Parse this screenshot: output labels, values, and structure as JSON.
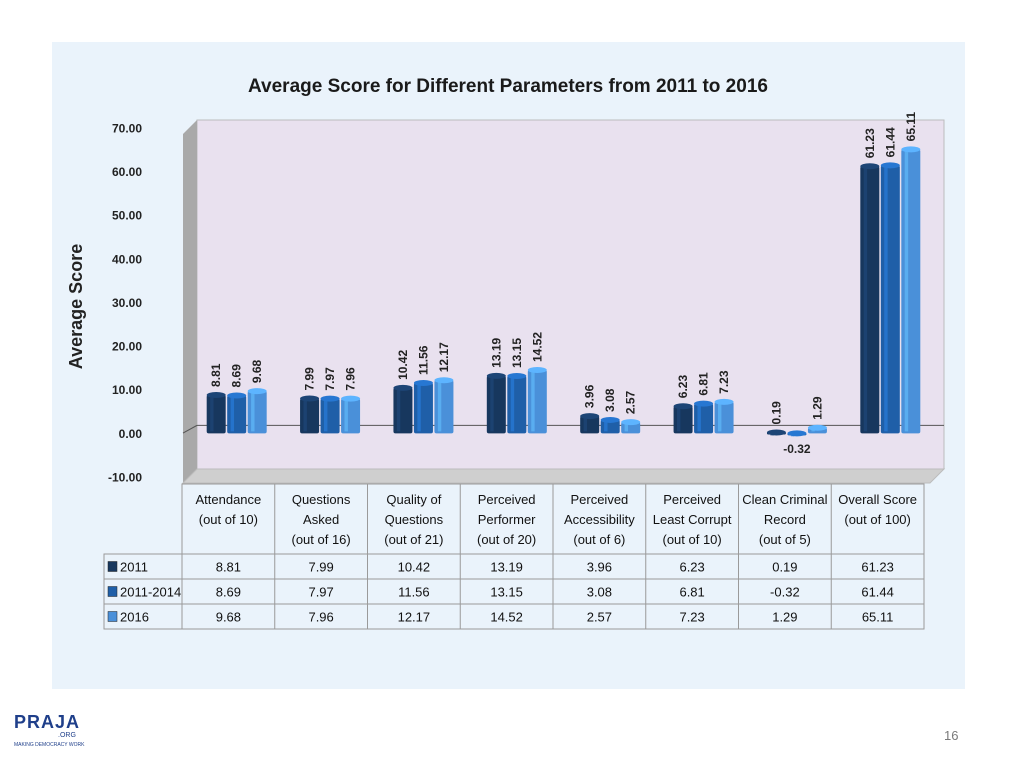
{
  "slide": {
    "page_number": "16"
  },
  "logo": {
    "word": "PRAJA",
    "suffix": ".ORG",
    "tagline": "MAKING DEMOCRACY WORK"
  },
  "chart_data": {
    "type": "bar",
    "title": "Average Score for Different Parameters from 2011 to 2016",
    "ylabel": "Average Score",
    "xlabel": "",
    "ylim": [
      -10,
      70
    ],
    "yticks": [
      "70.00",
      "60.00",
      "50.00",
      "40.00",
      "30.00",
      "20.00",
      "10.00",
      "0.00",
      "-10.00"
    ],
    "grid": true,
    "categories": [
      [
        "Attendance",
        "(out of 10)"
      ],
      [
        "Questions",
        "Asked",
        "(out of 16)"
      ],
      [
        "Quality of",
        "Questions",
        "(out of 21)"
      ],
      [
        "Perceived",
        "Performer",
        "(out of 20)"
      ],
      [
        "Perceived",
        "Accessibility",
        "(out of 6)"
      ],
      [
        "Perceived",
        "Least Corrupt",
        "(out of 10)"
      ],
      [
        "Clean Criminal",
        "Record",
        "(out of 5)"
      ],
      [
        "Overall Score",
        "(out of 100)"
      ]
    ],
    "series": [
      {
        "name": "2011",
        "color": "#17375e",
        "values": [
          8.81,
          7.99,
          10.42,
          13.19,
          3.96,
          6.23,
          0.19,
          61.23
        ],
        "labels": [
          "8.81",
          "7.99",
          "10.42",
          "13.19",
          "3.96",
          "6.23",
          "0.19",
          "61.23"
        ]
      },
      {
        "name": "2011-2014",
        "color": "#1f5fa8",
        "values": [
          8.69,
          7.97,
          11.56,
          13.15,
          3.08,
          6.81,
          -0.32,
          61.44
        ],
        "labels": [
          "8.69",
          "7.97",
          "11.56",
          "13.15",
          "3.08",
          "6.81",
          "-0.32",
          "61.44"
        ]
      },
      {
        "name": "2016",
        "color": "#4a90d9",
        "values": [
          9.68,
          7.96,
          12.17,
          14.52,
          2.57,
          7.23,
          1.29,
          65.11
        ],
        "labels": [
          "9.68",
          "7.96",
          "12.17",
          "14.52",
          "2.57",
          "7.23",
          "1.29",
          "65.11"
        ]
      }
    ],
    "table": true,
    "colors": {
      "plot_bg": "#e9e1ef",
      "panel_bg": "#eaf3fb",
      "wall_side": "#a9a9a9"
    }
  }
}
